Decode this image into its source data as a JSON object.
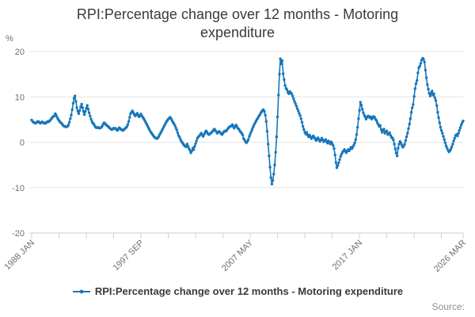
{
  "source_label": "Source:",
  "chart_data": {
    "type": "line",
    "title": "RPI:Percentage change over 12 months - Motoring expenditure",
    "y_unit": "%",
    "xlabel": "",
    "ylabel": "%",
    "ylim": [
      -20,
      20
    ],
    "y_ticks": [
      20,
      10,
      0,
      -10,
      -20
    ],
    "x_start": "1988 JAN",
    "x_end": "2026 MAR",
    "x_minor_tick_months": [
      0,
      29,
      58,
      87,
      116,
      145,
      174,
      203,
      232,
      261,
      290,
      319,
      348,
      377,
      406,
      435,
      458
    ],
    "x_labeled_ticks": [
      {
        "m": 0,
        "label": "1988 JAN"
      },
      {
        "m": 116,
        "label": "1997 SEP"
      },
      {
        "m": 232,
        "label": "2007 MAY"
      },
      {
        "m": 348,
        "label": "2017 JAN"
      },
      {
        "m": 458,
        "label": "2026 MAR"
      }
    ],
    "legend_position": "bottom",
    "grid": "horizontal",
    "colors": {
      "series": "#1776bb",
      "grid": "#e6e6e6",
      "axis_line": "#c9d2e2",
      "axis_text": "#6f6f6f",
      "title_text": "#3a3a3a",
      "source_text": "#8e8e8e"
    },
    "series": [
      {
        "name": "RPI:Percentage change over 12 months - Motoring expenditure",
        "x_unit": "months since 1988-01, monthly values",
        "values": [
          4.9,
          4.6,
          4.4,
          4.3,
          4.2,
          4.3,
          4.5,
          4.6,
          4.4,
          4.2,
          4.3,
          4.5,
          4.4,
          4.2,
          4.3,
          4.2,
          4.4,
          4.6,
          4.5,
          4.7,
          4.9,
          5.2,
          5.5,
          5.7,
          5.8,
          6.3,
          6.0,
          5.5,
          5.1,
          4.8,
          4.5,
          4.3,
          4.1,
          3.8,
          3.6,
          3.5,
          3.4,
          3.4,
          3.5,
          3.8,
          4.4,
          5.2,
          6.0,
          7.2,
          8.6,
          9.7,
          10.2,
          9.0,
          7.6,
          6.8,
          6.3,
          7.0,
          7.8,
          8.4,
          7.6,
          6.8,
          6.1,
          6.8,
          7.5,
          8.1,
          7.3,
          6.5,
          5.8,
          5.1,
          4.6,
          4.2,
          4.0,
          3.6,
          3.3,
          3.2,
          3.3,
          3.2,
          3.1,
          3.2,
          3.3,
          3.6,
          4.0,
          4.3,
          4.1,
          3.8,
          3.7,
          3.5,
          3.3,
          3.1,
          2.9,
          2.8,
          2.9,
          3.1,
          3.0,
          3.1,
          2.8,
          2.6,
          2.9,
          3.2,
          3.0,
          2.8,
          2.7,
          2.6,
          2.8,
          3.0,
          3.2,
          3.4,
          3.9,
          4.6,
          5.5,
          6.3,
          6.6,
          6.9,
          6.5,
          6.1,
          5.8,
          6.1,
          6.4,
          6.0,
          5.6,
          5.9,
          6.2,
          5.8,
          5.5,
          5.2,
          4.8,
          4.4,
          4.0,
          3.6,
          3.2,
          2.8,
          2.4,
          2.1,
          1.8,
          1.5,
          1.2,
          1.0,
          0.9,
          0.8,
          1.0,
          1.3,
          1.7,
          2.1,
          2.5,
          2.9,
          3.3,
          3.7,
          4.1,
          4.5,
          4.8,
          5.1,
          5.3,
          5.5,
          5.2,
          4.8,
          4.4,
          4.1,
          3.7,
          3.2,
          2.7,
          2.1,
          1.5,
          1.1,
          0.6,
          0.2,
          -0.1,
          -0.4,
          -0.7,
          -0.9,
          -1.0,
          -0.4,
          -0.9,
          -1.4,
          -1.8,
          -2.3,
          -1.9,
          -1.3,
          -1.6,
          -0.9,
          -0.3,
          0.3,
          0.9,
          1.2,
          1.4,
          1.7,
          2.0,
          1.6,
          1.3,
          1.7,
          2.1,
          2.5,
          2.3,
          1.9,
          1.7,
          1.8,
          2.0,
          2.2,
          2.4,
          2.7,
          2.9,
          2.6,
          2.3,
          2.0,
          2.2,
          2.4,
          2.2,
          1.9,
          1.7,
          2.0,
          2.3,
          2.5,
          2.4,
          2.6,
          2.9,
          3.2,
          3.4,
          3.5,
          3.6,
          3.9,
          3.5,
          3.1,
          3.5,
          3.8,
          3.4,
          3.0,
          2.9,
          2.5,
          2.2,
          2.0,
          1.6,
          0.8,
          0.5,
          0.1,
          -0.1,
          0.2,
          0.6,
          1.3,
          1.8,
          2.3,
          2.8,
          3.3,
          3.8,
          4.2,
          4.6,
          5.0,
          5.3,
          5.7,
          6.0,
          6.4,
          6.7,
          7.0,
          7.2,
          6.8,
          6.0,
          4.6,
          2.4,
          -0.4,
          -3.0,
          -5.5,
          -7.8,
          -9.2,
          -8.4,
          -7.0,
          -5.0,
          -2.2,
          1.2,
          5.6,
          10.4,
          15.0,
          18.4,
          17.3,
          18.0,
          15.1,
          13.8,
          12.5,
          11.9,
          11.6,
          11.0,
          10.7,
          11.2,
          10.9,
          10.7,
          10.2,
          9.6,
          9.0,
          8.5,
          8.0,
          7.4,
          6.9,
          6.4,
          5.9,
          5.2,
          4.4,
          3.5,
          2.8,
          2.2,
          1.8,
          2.2,
          1.6,
          1.2,
          1.6,
          1.2,
          0.8,
          1.1,
          1.4,
          1.1,
          0.7,
          0.4,
          0.8,
          1.0,
          0.6,
          0.2,
          0.5,
          0.9,
          0.5,
          0.1,
          0.4,
          0.6,
          0.2,
          -0.2,
          0.3,
          0.0,
          -0.4,
          0.1,
          -0.3,
          -0.7,
          -1.4,
          -2.8,
          -4.5,
          -5.6,
          -5.1,
          -4.5,
          -3.8,
          -3.1,
          -2.6,
          -2.2,
          -1.9,
          -1.6,
          -2.0,
          -2.3,
          -1.9,
          -1.6,
          -1.9,
          -1.5,
          -1.1,
          -1.4,
          -1.0,
          -0.6,
          -0.1,
          0.6,
          1.7,
          3.3,
          5.2,
          7.0,
          8.8,
          8.2,
          7.3,
          6.5,
          6.0,
          5.6,
          5.1,
          5.5,
          5.8,
          5.7,
          5.4,
          5.6,
          5.1,
          5.4,
          5.7,
          5.5,
          5.1,
          4.8,
          4.3,
          3.9,
          3.5,
          3.7,
          2.8,
          2.2,
          2.6,
          2.9,
          2.0,
          2.3,
          2.5,
          1.7,
          1.9,
          2.1,
          1.5,
          1.1,
          0.9,
          0.5,
          -0.4,
          -1.5,
          -2.4,
          -3.0,
          -1.3,
          -0.4,
          0.2,
          -0.2,
          -0.7,
          -1.1,
          -0.8,
          -0.4,
          0.4,
          1.2,
          2.0,
          3.0,
          4.0,
          5.2,
          6.6,
          7.6,
          8.3,
          10.1,
          11.8,
          12.9,
          13.6,
          15.3,
          16.4,
          16.8,
          17.4,
          18.1,
          18.5,
          18.3,
          17.7,
          15.9,
          14.2,
          12.7,
          11.7,
          10.8,
          10.2,
          10.8,
          11.3,
          10.4,
          10.7,
          9.8,
          9.2,
          8.1,
          6.6,
          5.4,
          4.3,
          3.3,
          2.6,
          2.0,
          1.3,
          0.6,
          -0.1,
          -0.8,
          -1.3,
          -1.8,
          -2.1,
          -1.9,
          -1.5,
          -1.0,
          -0.4,
          0.3,
          0.9,
          1.5,
          1.7,
          1.4,
          2.0,
          2.6,
          3.2,
          3.8,
          4.3,
          4.7
        ]
      }
    ]
  }
}
